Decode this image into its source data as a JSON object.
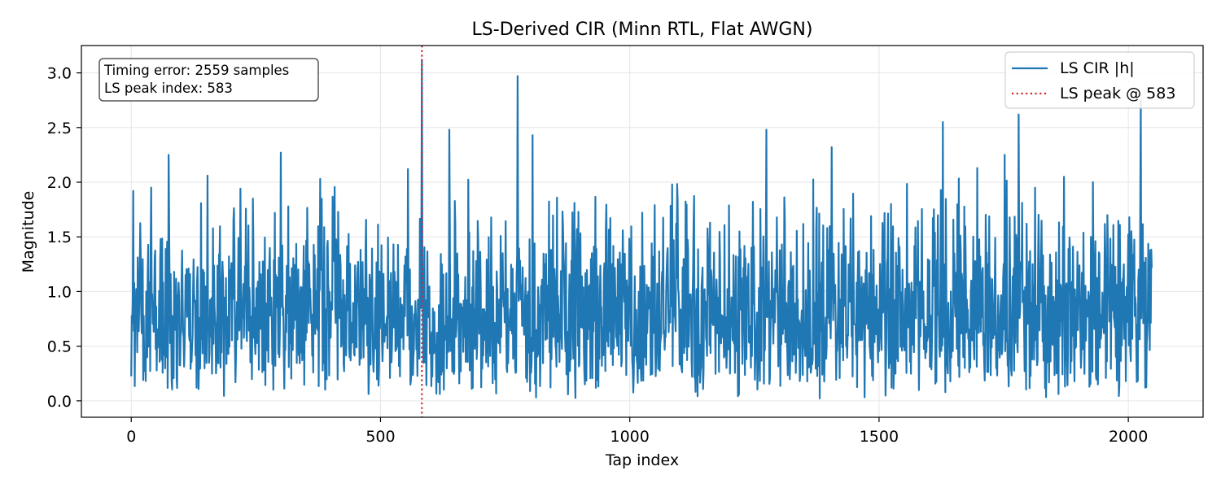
{
  "chart_data": {
    "type": "line",
    "title": "LS-Derived CIR (Minn RTL, Flat AWGN)",
    "xlabel": "Tap index",
    "ylabel": "Magnitude",
    "xlim": [
      -100,
      2150
    ],
    "ylim": [
      -0.15,
      3.25
    ],
    "xticks": [
      0,
      500,
      1000,
      1500,
      2000
    ],
    "yticks": [
      0.0,
      0.5,
      1.0,
      1.5,
      2.0,
      2.5,
      3.0
    ],
    "xtick_labels": [
      "0",
      "500",
      "1000",
      "1500",
      "2000"
    ],
    "ytick_labels": [
      "0.0",
      "0.5",
      "1.0",
      "1.5",
      "2.0",
      "2.5",
      "3.0"
    ],
    "grid": true,
    "legend_position": "top-right",
    "series": [
      {
        "name": "LS CIR |h|",
        "color": "#1f77b4",
        "length": 2048,
        "peaks": [
          [
            583,
            3.12
          ],
          [
            775,
            2.97
          ],
          [
            638,
            2.48
          ],
          [
            805,
            2.43
          ],
          [
            1274,
            2.48
          ],
          [
            1628,
            2.55
          ],
          [
            1780,
            2.62
          ],
          [
            2025,
            2.75
          ],
          [
            300,
            2.27
          ],
          [
            75,
            2.25
          ],
          [
            1405,
            2.32
          ],
          [
            1752,
            2.25
          ],
          [
            1697,
            2.13
          ],
          [
            1929,
            2.0
          ],
          [
            1871,
            2.05
          ],
          [
            1085,
            1.98
          ],
          [
            1813,
            1.95
          ],
          [
            1958,
            1.7
          ],
          [
            555,
            2.12
          ],
          [
            153,
            2.06
          ],
          [
            4,
            1.92
          ],
          [
            40,
            1.95
          ]
        ]
      },
      {
        "name": "LS peak @ 583",
        "color": "#d62728",
        "style": "dotted",
        "x": 583
      }
    ],
    "annotation": [
      "Timing error: 2559 samples",
      "LS peak index: 583"
    ]
  }
}
